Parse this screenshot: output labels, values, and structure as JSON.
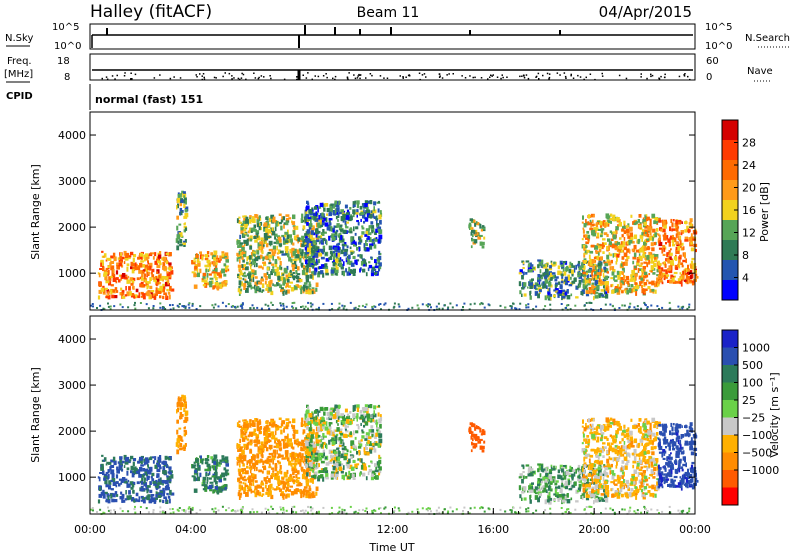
{
  "header": {
    "station": "Halley (fitACF)",
    "beam": "Beam 11",
    "date": "04/Apr/2015"
  },
  "panels": {
    "nsky": {
      "label": "N.Sky",
      "right_label": "N.Search",
      "left_ticks": [
        "10^5",
        "10^0"
      ],
      "right_ticks": [
        "10^5",
        "10^0"
      ]
    },
    "freq": {
      "label_lines": [
        "Freq.",
        "[MHz]"
      ],
      "left_ticks": [
        "18",
        "8"
      ],
      "right_label": "Nave",
      "right_ticks": [
        "60",
        "0"
      ]
    },
    "cpid": {
      "label": "CPID",
      "text": "normal (fast) 151"
    }
  },
  "colors": {
    "power_scale": [
      "#0000ff",
      "#2455b0",
      "#2f7a55",
      "#57a557",
      "#f2d21e",
      "#ff9a19",
      "#ff6a00",
      "#ff3a00",
      "#d40000"
    ],
    "velocity_scale": [
      "#ff0000",
      "#ff5a00",
      "#ff8c00",
      "#ffb000",
      "#c8c8c8",
      "#6ad148",
      "#3a9b3a",
      "#2c7a5a",
      "#2a4fb0",
      "#1a22c8"
    ],
    "frame": "#000000"
  },
  "chart_data": [
    {
      "type": "heatmap",
      "panel": "power",
      "title": "",
      "ylabel": "Slant Range [km]",
      "yticks": [
        "1000",
        "2000",
        "3000",
        "4000"
      ],
      "ylim": [
        200,
        4500
      ],
      "xlim_hours": [
        0,
        24
      ],
      "colorbar": {
        "label": "Power [dB]",
        "ticks": [
          "4",
          "8",
          "12",
          "16",
          "20",
          "24",
          "28"
        ],
        "range": [
          0,
          32
        ]
      },
      "echo_regions": [
        {
          "t_start": 0.3,
          "t_end": 3.2,
          "r_min": 500,
          "r_max": 1500,
          "power_db": 22
        },
        {
          "t_start": 3.4,
          "t_end": 3.8,
          "r_min": 1600,
          "r_max": 2800,
          "power_db": 12
        },
        {
          "t_start": 4.0,
          "t_end": 5.4,
          "r_min": 700,
          "r_max": 1500,
          "power_db": 18
        },
        {
          "t_start": 5.8,
          "t_end": 9.0,
          "r_min": 600,
          "r_max": 2300,
          "power_db": 14
        },
        {
          "t_start": 8.5,
          "t_end": 11.5,
          "r_min": 1000,
          "r_max": 2600,
          "power_db": 8
        },
        {
          "t_start": 15.0,
          "t_end": 15.6,
          "r_min": 1600,
          "r_max": 2200,
          "power_db": 14
        },
        {
          "t_start": 17.0,
          "t_end": 20.5,
          "r_min": 500,
          "r_max": 1300,
          "power_db": 10
        },
        {
          "t_start": 19.5,
          "t_end": 22.5,
          "r_min": 600,
          "r_max": 2300,
          "power_db": 18
        },
        {
          "t_start": 22.5,
          "t_end": 24.0,
          "r_min": 800,
          "r_max": 2200,
          "power_db": 22
        }
      ]
    },
    {
      "type": "heatmap",
      "panel": "velocity",
      "title": "",
      "ylabel": "Slant Range [km]",
      "yticks": [
        "1000",
        "2000",
        "3000",
        "4000"
      ],
      "ylim": [
        200,
        4500
      ],
      "xlim_hours": [
        0,
        24
      ],
      "xticks": [
        "00:00",
        "04:00",
        "08:00",
        "12:00",
        "16:00",
        "20:00",
        "00:00"
      ],
      "xlabel": "Time UT",
      "colorbar": {
        "label": "Velocity [m s⁻¹]",
        "ticks": [
          "1000",
          "500",
          "100",
          "25",
          "−25",
          "−100",
          "−500",
          "−1000"
        ]
      },
      "echo_regions": [
        {
          "t_start": 0.3,
          "t_end": 3.2,
          "r_min": 500,
          "r_max": 1500,
          "velocity": 300
        },
        {
          "t_start": 3.4,
          "t_end": 3.8,
          "r_min": 1600,
          "r_max": 2800,
          "velocity": -300
        },
        {
          "t_start": 4.0,
          "t_end": 5.4,
          "r_min": 700,
          "r_max": 1500,
          "velocity": 150
        },
        {
          "t_start": 5.8,
          "t_end": 9.0,
          "r_min": 600,
          "r_max": 2300,
          "velocity": -300
        },
        {
          "t_start": 8.5,
          "t_end": 11.5,
          "r_min": 1000,
          "r_max": 2600,
          "velocity": 0
        },
        {
          "t_start": 15.0,
          "t_end": 15.6,
          "r_min": 1600,
          "r_max": 2200,
          "velocity": -700
        },
        {
          "t_start": 17.0,
          "t_end": 20.5,
          "r_min": 500,
          "r_max": 1300,
          "velocity": 60
        },
        {
          "t_start": 19.5,
          "t_end": 22.5,
          "r_min": 600,
          "r_max": 2300,
          "velocity": -150
        },
        {
          "t_start": 22.5,
          "t_end": 24.0,
          "r_min": 800,
          "r_max": 2200,
          "velocity": 400
        }
      ]
    }
  ]
}
